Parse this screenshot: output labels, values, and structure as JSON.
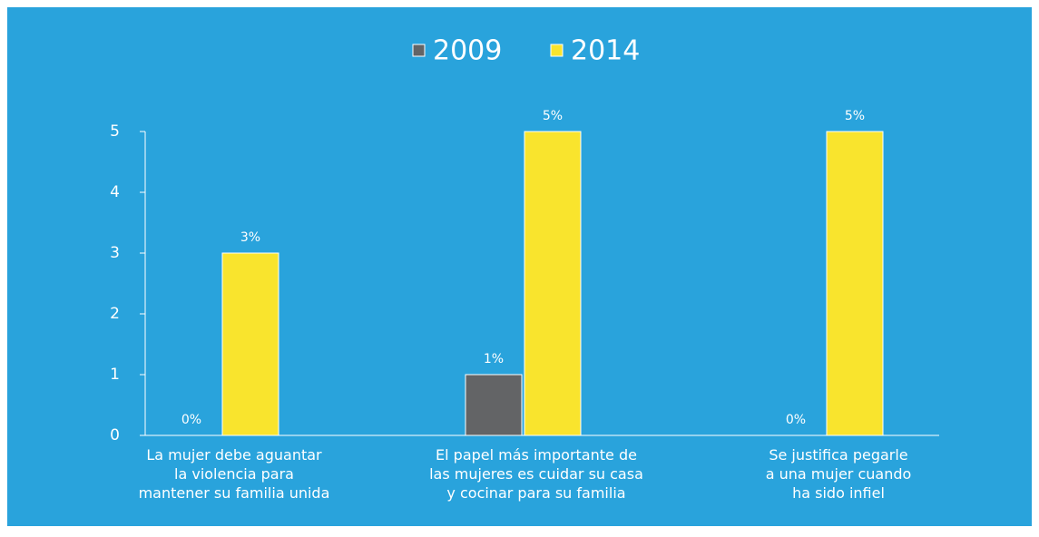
{
  "chart_data": {
    "type": "bar",
    "categories": [
      "La mujer debe aguantar\nla violencia para\nmantener su familia unida",
      "El papel más importante de\nlas mujeres es cuidar su casa\ny cocinar para su familia",
      "Se justifica pegarle\na una mujer cuando\nha sido infiel"
    ],
    "series": [
      {
        "name": "2009",
        "color": "#636466",
        "values": [
          0,
          1,
          0
        ],
        "value_labels": [
          "0%",
          "1%",
          "0%"
        ]
      },
      {
        "name": "2014",
        "color": "#f9e42d",
        "values": [
          3,
          5,
          5
        ],
        "value_labels": [
          "3%",
          "5%",
          "5%"
        ]
      }
    ],
    "ylim": [
      0,
      5
    ],
    "yticks": [
      0,
      1,
      2,
      3,
      4,
      5
    ],
    "legend": "top"
  }
}
